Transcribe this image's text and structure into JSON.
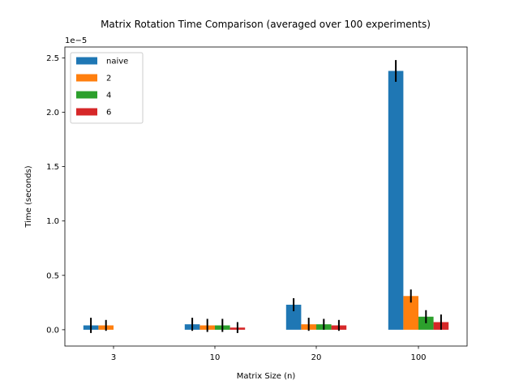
{
  "chart_data": {
    "type": "bar",
    "title": "Matrix Rotation Time Comparison (averaged over 100 experiments)",
    "xlabel": "Matrix Size (n)",
    "ylabel": "Time (seconds)",
    "y_offset_label": "1e−5",
    "y_scale": 1e-05,
    "categories": [
      "3",
      "10",
      "20",
      "100"
    ],
    "ylim": [
      -0.15,
      2.6
    ],
    "yticks": [
      0.0,
      0.5,
      1.0,
      1.5,
      2.0,
      2.5
    ],
    "ytick_labels": [
      "0.0",
      "0.5",
      "1.0",
      "1.5",
      "2.0",
      "2.5"
    ],
    "grid": false,
    "legend_position": "top-left",
    "series": [
      {
        "name": "naive",
        "color": "#1f77b4",
        "values": [
          0.04,
          0.05,
          0.23,
          2.38
        ],
        "errors": [
          0.07,
          0.06,
          0.06,
          0.1
        ]
      },
      {
        "name": "2",
        "color": "#ff7f0e",
        "values": [
          0.04,
          0.04,
          0.05,
          0.31
        ],
        "errors": [
          0.05,
          0.06,
          0.06,
          0.06
        ]
      },
      {
        "name": "4",
        "color": "#2ca02c",
        "values": [
          null,
          0.04,
          0.05,
          0.12
        ],
        "errors": [
          null,
          0.06,
          0.05,
          0.06
        ]
      },
      {
        "name": "6",
        "color": "#d62728",
        "values": [
          null,
          0.02,
          0.04,
          0.07
        ],
        "errors": [
          null,
          0.05,
          0.05,
          0.07
        ]
      }
    ]
  }
}
